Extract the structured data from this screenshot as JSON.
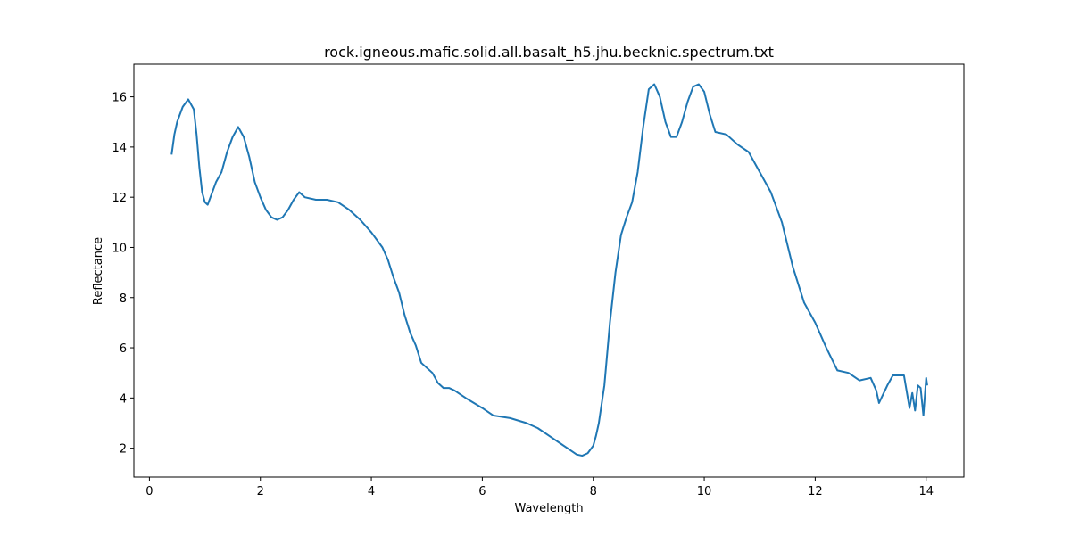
{
  "chart_data": {
    "type": "line",
    "title": "rock.igneous.mafic.solid.all.basalt_h5.jhu.becknic.spectrum.txt",
    "x_label": "Wavelength",
    "y_label": "Reflectance",
    "xlim": [
      -0.28,
      14.68
    ],
    "ylim": [
      0.85,
      17.3
    ],
    "xticks": [
      0,
      2,
      4,
      6,
      8,
      10,
      12,
      14
    ],
    "yticks": [
      2,
      4,
      6,
      8,
      10,
      12,
      14,
      16
    ],
    "grid": false,
    "x": [
      0.4,
      0.45,
      0.5,
      0.6,
      0.7,
      0.8,
      0.85,
      0.9,
      0.95,
      1.0,
      1.05,
      1.1,
      1.2,
      1.3,
      1.4,
      1.5,
      1.6,
      1.7,
      1.8,
      1.9,
      2.0,
      2.1,
      2.2,
      2.3,
      2.4,
      2.5,
      2.6,
      2.7,
      2.8,
      3.0,
      3.2,
      3.4,
      3.6,
      3.8,
      4.0,
      4.2,
      4.3,
      4.4,
      4.5,
      4.6,
      4.7,
      4.8,
      4.9,
      5.0,
      5.1,
      5.2,
      5.3,
      5.4,
      5.5,
      5.7,
      6.0,
      6.2,
      6.5,
      6.8,
      7.0,
      7.2,
      7.4,
      7.6,
      7.7,
      7.8,
      7.9,
      8.0,
      8.05,
      8.1,
      8.2,
      8.3,
      8.4,
      8.5,
      8.6,
      8.7,
      8.8,
      8.9,
      9.0,
      9.1,
      9.2,
      9.3,
      9.4,
      9.5,
      9.6,
      9.7,
      9.8,
      9.9,
      10.0,
      10.1,
      10.2,
      10.4,
      10.6,
      10.8,
      11.0,
      11.2,
      11.4,
      11.6,
      11.8,
      12.0,
      12.2,
      12.4,
      12.6,
      12.8,
      13.0,
      13.1,
      13.15,
      13.3,
      13.4,
      13.6,
      13.7,
      13.75,
      13.8,
      13.85,
      13.9,
      13.95,
      14.0,
      14.02
    ],
    "series": [
      {
        "color": "#1f77b4",
        "values": [
          13.7,
          14.5,
          15.0,
          15.6,
          15.9,
          15.5,
          14.5,
          13.2,
          12.2,
          11.8,
          11.7,
          12.0,
          12.6,
          13.0,
          13.8,
          14.4,
          14.8,
          14.4,
          13.6,
          12.6,
          12.0,
          11.5,
          11.2,
          11.1,
          11.2,
          11.5,
          11.9,
          12.2,
          12.0,
          11.9,
          11.9,
          11.8,
          11.5,
          11.1,
          10.6,
          10.0,
          9.5,
          8.8,
          8.2,
          7.3,
          6.6,
          6.1,
          5.4,
          5.2,
          5.0,
          4.6,
          4.4,
          4.4,
          4.3,
          4.0,
          3.6,
          3.3,
          3.2,
          3.0,
          2.8,
          2.5,
          2.2,
          1.9,
          1.75,
          1.7,
          1.8,
          2.1,
          2.5,
          3.0,
          4.5,
          7.0,
          9.0,
          10.5,
          11.2,
          11.8,
          13.0,
          14.8,
          16.3,
          16.5,
          16.0,
          15.0,
          14.4,
          14.4,
          15.0,
          15.8,
          16.4,
          16.5,
          16.2,
          15.3,
          14.6,
          14.5,
          14.1,
          13.8,
          13.0,
          12.2,
          11.0,
          9.2,
          7.8,
          7.0,
          6.0,
          5.1,
          5.0,
          4.7,
          4.8,
          4.3,
          3.8,
          4.5,
          4.9,
          4.9,
          3.6,
          4.2,
          3.5,
          4.5,
          4.4,
          3.3,
          4.8,
          4.5
        ]
      }
    ]
  }
}
